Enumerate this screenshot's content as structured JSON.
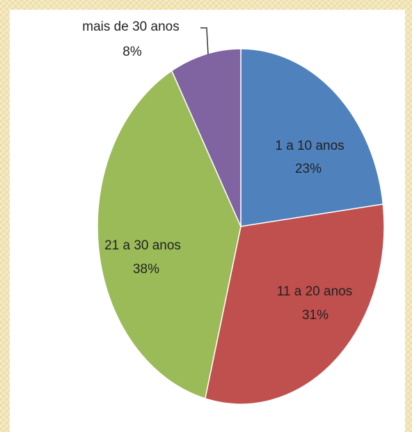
{
  "chart_data": {
    "type": "pie",
    "slices": [
      {
        "label": "1 a 10 anos",
        "percent_label": "23%",
        "value": 23,
        "color": "#4f81bd"
      },
      {
        "label": "11 a 20 anos",
        "percent_label": "31%",
        "value": 31,
        "color": "#c0504d"
      },
      {
        "label": "21 a 30 anos",
        "percent_label": "38%",
        "value": 38,
        "color": "#9bbb59"
      },
      {
        "label": "mais de 30 anos",
        "percent_label": "8%",
        "value": 8,
        "color": "#8064a2"
      }
    ],
    "start_angle_deg": 0,
    "direction": "clockwise",
    "legend": "none",
    "title": ""
  }
}
